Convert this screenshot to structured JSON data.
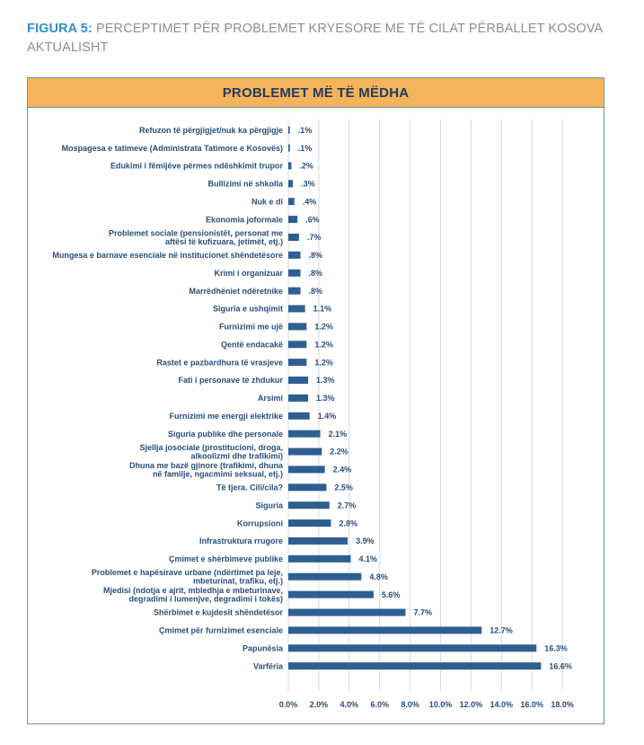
{
  "figure": {
    "label": "FIGURA 5:",
    "title": "PERCEPTIMET PËR PROBLEMET KRYESORE ME TË CILAT PËRBALLET KOSOVA AKTUALISHT"
  },
  "chart_data": {
    "type": "bar",
    "orientation": "horizontal",
    "title": "PROBLEMET MË TË MËDHA",
    "categories": [
      [
        "Refuzon të përgjigjet/nuk ka përgjigje"
      ],
      [
        "Mospagesa e tatimeve (Administrata Tatimore e Kosovës)"
      ],
      [
        "Edukimi i fëmijëve përmes ndëshkimit trupor"
      ],
      [
        "Bullizimi në shkolla"
      ],
      [
        "Nuk e di"
      ],
      [
        "Ekonomia joformale"
      ],
      [
        "Problemet sociale (pensionistët, personat me",
        "aftësi të kufizuara, jetimët, etj.)"
      ],
      [
        "Mungesa e barnave esenciale në institucionet shëndetësore"
      ],
      [
        "Krimi i organizuar"
      ],
      [
        "Marrëdhëniet ndëretnike"
      ],
      [
        "Siguria e ushqimit"
      ],
      [
        "Furnizimi me ujë"
      ],
      [
        "Qentë endacakë"
      ],
      [
        "Rastet e pazbardhura të vrasjeve"
      ],
      [
        "Fati i personave të zhdukur"
      ],
      [
        "Arsimi"
      ],
      [
        "Furnizimi me energji elektrike"
      ],
      [
        "Siguria publike dhe personale"
      ],
      [
        "Sjellja josociale (prostitucioni, droga,",
        "alkoolizmi dhe trafikimi)"
      ],
      [
        "Dhuna me bazë gjinore (trafikimi, dhuna",
        "në familje, ngacmimi seksual, etj.)"
      ],
      [
        "Të tjera. Cili/cila?"
      ],
      [
        "Siguria"
      ],
      [
        "Korrupsioni"
      ],
      [
        "Infrastruktura rrugore"
      ],
      [
        "Çmimet e shërbimeve publike"
      ],
      [
        "Problemet e hapësirave urbane (ndërtimet pa leje,",
        "mbeturinat, trafiku, etj.)"
      ],
      [
        "Mjedisi (ndotja e ajrit, mbledhja e mbeturinave,",
        "degradimi i lumenjve, degradimi i tokës)"
      ],
      [
        "Shërbimet e kujdesit shëndetësor"
      ],
      [
        "Çmimet për furnizimet esenciale"
      ],
      [
        "Papunësia"
      ],
      [
        "Varfëria"
      ]
    ],
    "values": [
      0.1,
      0.1,
      0.2,
      0.3,
      0.4,
      0.6,
      0.7,
      0.8,
      0.8,
      0.8,
      1.1,
      1.2,
      1.2,
      1.2,
      1.3,
      1.3,
      1.4,
      2.1,
      2.2,
      2.4,
      2.5,
      2.7,
      2.8,
      3.9,
      4.1,
      4.8,
      5.6,
      7.7,
      12.7,
      16.3,
      16.6
    ],
    "value_labels": [
      ".1%",
      ".1%",
      ".2%",
      ".3%",
      ".4%",
      ".6%",
      ".7%",
      ".8%",
      ".8%",
      ".8%",
      "1.1%",
      "1.2%",
      "1.2%",
      "1.2%",
      "1.3%",
      "1.3%",
      "1.4%",
      "2.1%",
      "2.2%",
      "2.4%",
      "2.5%",
      "2.7%",
      "2.8%",
      "3.9%",
      "4.1%",
      "4.8%",
      "5.6%",
      "7.7%",
      "12.7%",
      "16.3%",
      "16.6%"
    ],
    "xlim": [
      0,
      18
    ],
    "xticks": [
      "0.0%",
      "2.0%",
      "4.0%",
      "6.0%",
      "8.0%",
      "10.0%",
      "12.0%",
      "14.0%",
      "16.0%",
      "18.0%"
    ],
    "grid": "vertical",
    "colors": {
      "bar": "#2f5f91",
      "grid": "#d9d9d9",
      "text": "#2a4e78",
      "header": "#f6b35a"
    }
  }
}
